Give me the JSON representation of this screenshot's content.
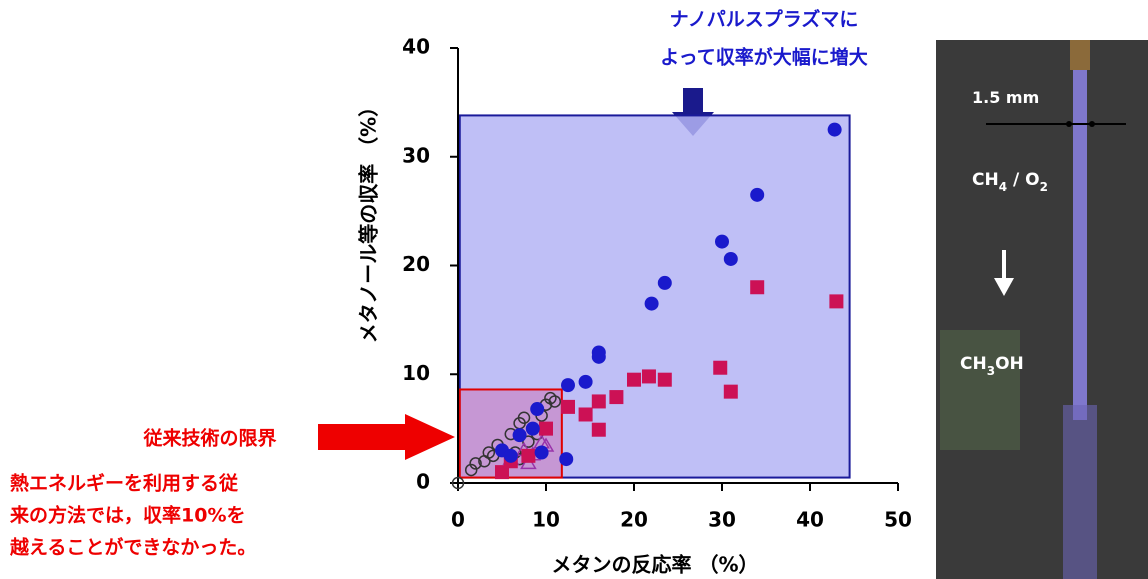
{
  "chart_data": {
    "type": "scatter",
    "xlabel": "メタンの反応率 （%）",
    "ylabel": "メタノール等の収率 （%）",
    "xlim": [
      0,
      50
    ],
    "ylim": [
      0,
      40
    ],
    "xticks": [
      0,
      10,
      20,
      30,
      40,
      50
    ],
    "yticks": [
      0,
      10,
      20,
      30,
      40
    ],
    "regions": [
      {
        "xlim": [
          0.2,
          44.5
        ],
        "ylim": [
          0.5,
          33.8
        ],
        "color": "#b4b4f5",
        "edge": "#1a1a9a"
      },
      {
        "xlim": [
          0.2,
          11.8
        ],
        "ylim": [
          0.5,
          8.6
        ],
        "color": "#c88ac8",
        "edge": "#e00000"
      }
    ],
    "series": [
      {
        "marker": "open-circle",
        "color": "#333333",
        "x": [
          0,
          1.5,
          2,
          3,
          4,
          5,
          6,
          7,
          7.5,
          8.5,
          9,
          10,
          10.5,
          11,
          6.5,
          7,
          4.5,
          3.5,
          9.5,
          8
        ],
        "values": [
          0,
          1.2,
          1.8,
          2,
          2.5,
          3,
          4.5,
          5.5,
          6,
          5,
          4.5,
          7.2,
          7.8,
          7.5,
          2.8,
          2.2,
          3.5,
          2.8,
          6.2,
          3.8
        ]
      },
      {
        "marker": "triangle",
        "color": "#9933aa",
        "x": [
          9.5,
          10,
          8,
          6,
          8.5,
          7.5
        ],
        "values": [
          3.7,
          3.4,
          1.8,
          2.2,
          2.6,
          3
        ]
      },
      {
        "marker": "square",
        "color": "#cc1155",
        "x": [
          34,
          43,
          21.7,
          20,
          23.5,
          29.8,
          31,
          18,
          16,
          14.5,
          16,
          12.5,
          5,
          8,
          10,
          6
        ],
        "values": [
          18,
          16.7,
          9.8,
          9.5,
          9.5,
          10.6,
          8.4,
          7.9,
          7.5,
          6.3,
          4.9,
          7,
          1,
          2.5,
          5,
          2
        ]
      },
      {
        "marker": "circle",
        "color": "#1a1acc",
        "x": [
          42.8,
          34,
          30,
          31,
          23.5,
          22,
          16,
          16,
          14.5,
          12.5,
          9,
          8.5,
          9.5,
          12.3,
          7,
          5,
          6
        ],
        "values": [
          32.5,
          26.5,
          22.2,
          20.6,
          18.4,
          16.5,
          12,
          11.6,
          9.3,
          9,
          6.8,
          5,
          2.8,
          2.2,
          4.4,
          3,
          2.5
        ]
      }
    ],
    "annotations": [
      {
        "text": "ナノパルスプラズマに",
        "color": "#1a1acc"
      },
      {
        "text": "よって収率が大幅に増大",
        "color": "#1a1acc"
      },
      {
        "text": "従来技術の限界",
        "color": "#ee0000"
      },
      {
        "text": "熱エネルギーを利用する従",
        "color": "#ee0000"
      },
      {
        "text": "来の方法では，収率10%を",
        "color": "#ee0000"
      },
      {
        "text": "越えることができなかった。",
        "color": "#ee0000"
      }
    ]
  },
  "photo": {
    "labels": [
      {
        "parts": [
          "1.5 mm"
        ]
      },
      {
        "parts": [
          "CH",
          "4",
          " / O",
          "2"
        ]
      },
      {
        "parts": [
          "CH",
          "3",
          "OH"
        ]
      }
    ]
  }
}
